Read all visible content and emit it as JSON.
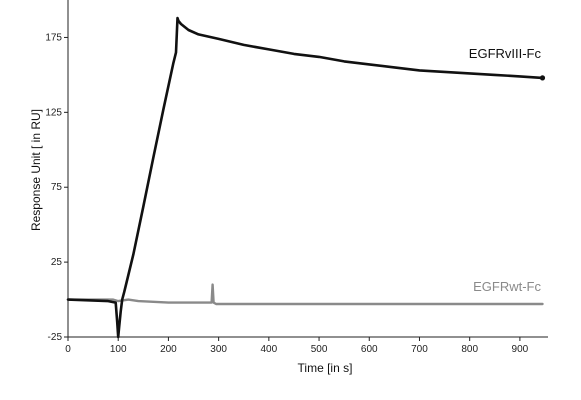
{
  "chart_data": {
    "type": "line",
    "title": "",
    "xlabel": "Time [in s]",
    "ylabel": "Response Unit [ in RU]",
    "xlim": [
      0,
      950
    ],
    "ylim": [
      -25,
      200
    ],
    "xticks": [
      0,
      100,
      200,
      300,
      400,
      500,
      600,
      700,
      800,
      900
    ],
    "yticks": [
      -25,
      25,
      75,
      125,
      175
    ],
    "grid": false,
    "legend": "inline labels",
    "series": [
      {
        "name": "EGFRvIII-Fc",
        "color": "#111111",
        "points": [
          [
            0,
            0
          ],
          [
            40,
            -0.5
          ],
          [
            80,
            -1
          ],
          [
            95,
            -2
          ],
          [
            98,
            -15
          ],
          [
            100,
            -25
          ],
          [
            102,
            -18
          ],
          [
            105,
            -8
          ],
          [
            108,
            0
          ],
          [
            112,
            5
          ],
          [
            130,
            30
          ],
          [
            150,
            62
          ],
          [
            170,
            95
          ],
          [
            190,
            127
          ],
          [
            210,
            158
          ],
          [
            215,
            165
          ],
          [
            218,
            188
          ],
          [
            220,
            186
          ],
          [
            225,
            184
          ],
          [
            240,
            180
          ],
          [
            260,
            177
          ],
          [
            300,
            174
          ],
          [
            350,
            170
          ],
          [
            400,
            167
          ],
          [
            450,
            164
          ],
          [
            500,
            162
          ],
          [
            550,
            159
          ],
          [
            600,
            157
          ],
          [
            650,
            155
          ],
          [
            700,
            153
          ],
          [
            750,
            152
          ],
          [
            800,
            151
          ],
          [
            850,
            150
          ],
          [
            900,
            149
          ],
          [
            945,
            148
          ]
        ]
      },
      {
        "name": "EGFRwt-Fc",
        "color": "#8a8a8a",
        "points": [
          [
            0,
            0
          ],
          [
            50,
            0
          ],
          [
            90,
            0
          ],
          [
            100,
            -1
          ],
          [
            120,
            0
          ],
          [
            140,
            -1
          ],
          [
            200,
            -2
          ],
          [
            280,
            -2
          ],
          [
            286,
            -2
          ],
          [
            288,
            10
          ],
          [
            290,
            -2
          ],
          [
            295,
            -3
          ],
          [
            400,
            -3
          ],
          [
            600,
            -3
          ],
          [
            800,
            -3
          ],
          [
            945,
            -3
          ]
        ]
      }
    ]
  }
}
